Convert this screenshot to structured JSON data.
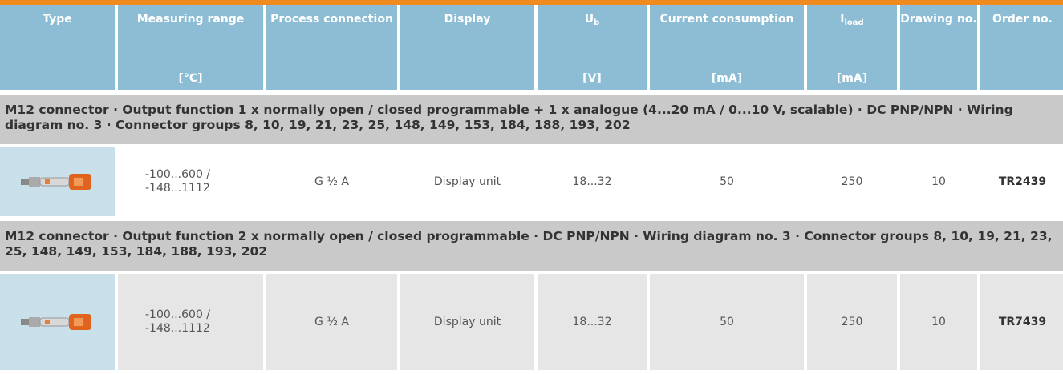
{
  "header": {
    "columns": [
      {
        "label": "Type"
      },
      {
        "label": "Measuring range",
        "unit": "[°C]"
      },
      {
        "label": "Process connection"
      },
      {
        "label": "Display"
      },
      {
        "label": "U",
        "sub": "b",
        "unit": "[V]"
      },
      {
        "label": "Current consumption",
        "unit": "[mA]"
      },
      {
        "label": "I",
        "sub": "load",
        "unit": "[mA]"
      },
      {
        "label": "Drawing no."
      },
      {
        "label": "Order no."
      }
    ]
  },
  "sections": [
    {
      "title": "M12 connector · Output function 1 x normally open / closed programmable + 1 x analogue (4...20 mA / 0...10 V, scalable) · DC PNP/NPN · Wiring diagram no. 3 · Connector groups 8, 10, 19, 21, 23, 25, 148, 149, 153, 184, 188, 193, 202",
      "row": {
        "range": "-100...600 / -148...1112",
        "connection": "G ½ A",
        "display": "Display unit",
        "ub": "18...32",
        "current": "50",
        "iload": "250",
        "drawing": "10",
        "order": "TR2439"
      }
    },
    {
      "title": "M12 connector · Output function 2 x normally open / closed programmable · DC PNP/NPN · Wiring diagram no. 3 · Connector groups 8, 10, 19, 21, 23, 25, 148, 149, 153, 184, 188, 193, 202",
      "row": {
        "range": "-100...600 / -148...1112",
        "connection": "G ½ A",
        "display": "Display unit",
        "ub": "18...32",
        "current": "50",
        "iload": "250",
        "drawing": "10",
        "order": "TR7439"
      }
    }
  ]
}
